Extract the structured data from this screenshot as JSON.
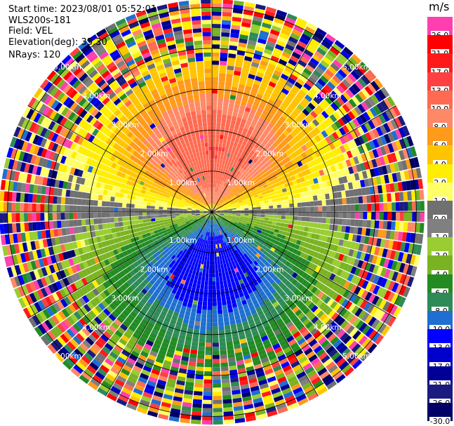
{
  "header": {
    "start_time": "Start time: 2023/08/01 05:52:01",
    "site": "WLS200s-181",
    "field": "Field: VEL",
    "elevation": "Elevation(deg): 35.30",
    "nrays": "NRays: 120"
  },
  "colorbar": {
    "unit": "m/s",
    "labels": [
      "26.0",
      "21.0",
      "17.0",
      "13.0",
      "10.0",
      "8.0",
      "6.0",
      "4.0",
      "2.0",
      "1.0",
      "0.0",
      "-1.0",
      "-2.0",
      "-4.0",
      "-6.0",
      "-8.0",
      "-10.0",
      "-13.0",
      "-17.0",
      "-21.0",
      "-26.0",
      "-30.0"
    ],
    "colors": [
      "#ff3fb0",
      "#ff0000",
      "#ff1a1a",
      "#ff4040",
      "#ff6a50",
      "#ff8866",
      "#ff9a1a",
      "#ffc400",
      "#ffee00",
      "#ffff66",
      "#707070",
      "#808080",
      "#9acd32",
      "#7ab321",
      "#228b22",
      "#2e8b57",
      "#1e6fd0",
      "#0000ff",
      "#0000cd",
      "#000099",
      "#1a1a80",
      "#000066"
    ]
  },
  "chart_data": {
    "type": "heatmap",
    "title": "",
    "field": "VEL",
    "units": "m/s",
    "projection": "polar PPI",
    "n_rays": 120,
    "elevation_deg": 35.3,
    "range_rings_km": [
      1.0,
      2.0,
      3.0,
      4.0,
      5.0
    ],
    "range_ring_labels": [
      "1.00km",
      "2.00km",
      "3.00km",
      "4.00km",
      "5.00km"
    ],
    "azimuth_lines_deg": [
      0,
      30,
      60,
      90,
      120,
      150,
      180,
      210,
      240,
      270,
      300,
      330
    ],
    "max_range_km": 5.2,
    "pattern": {
      "toward_positive_direction_deg": 0,
      "peak_positive_ms": 10.0,
      "peak_negative_ms": -10.0,
      "noise_beyond_km": 4.0
    }
  }
}
